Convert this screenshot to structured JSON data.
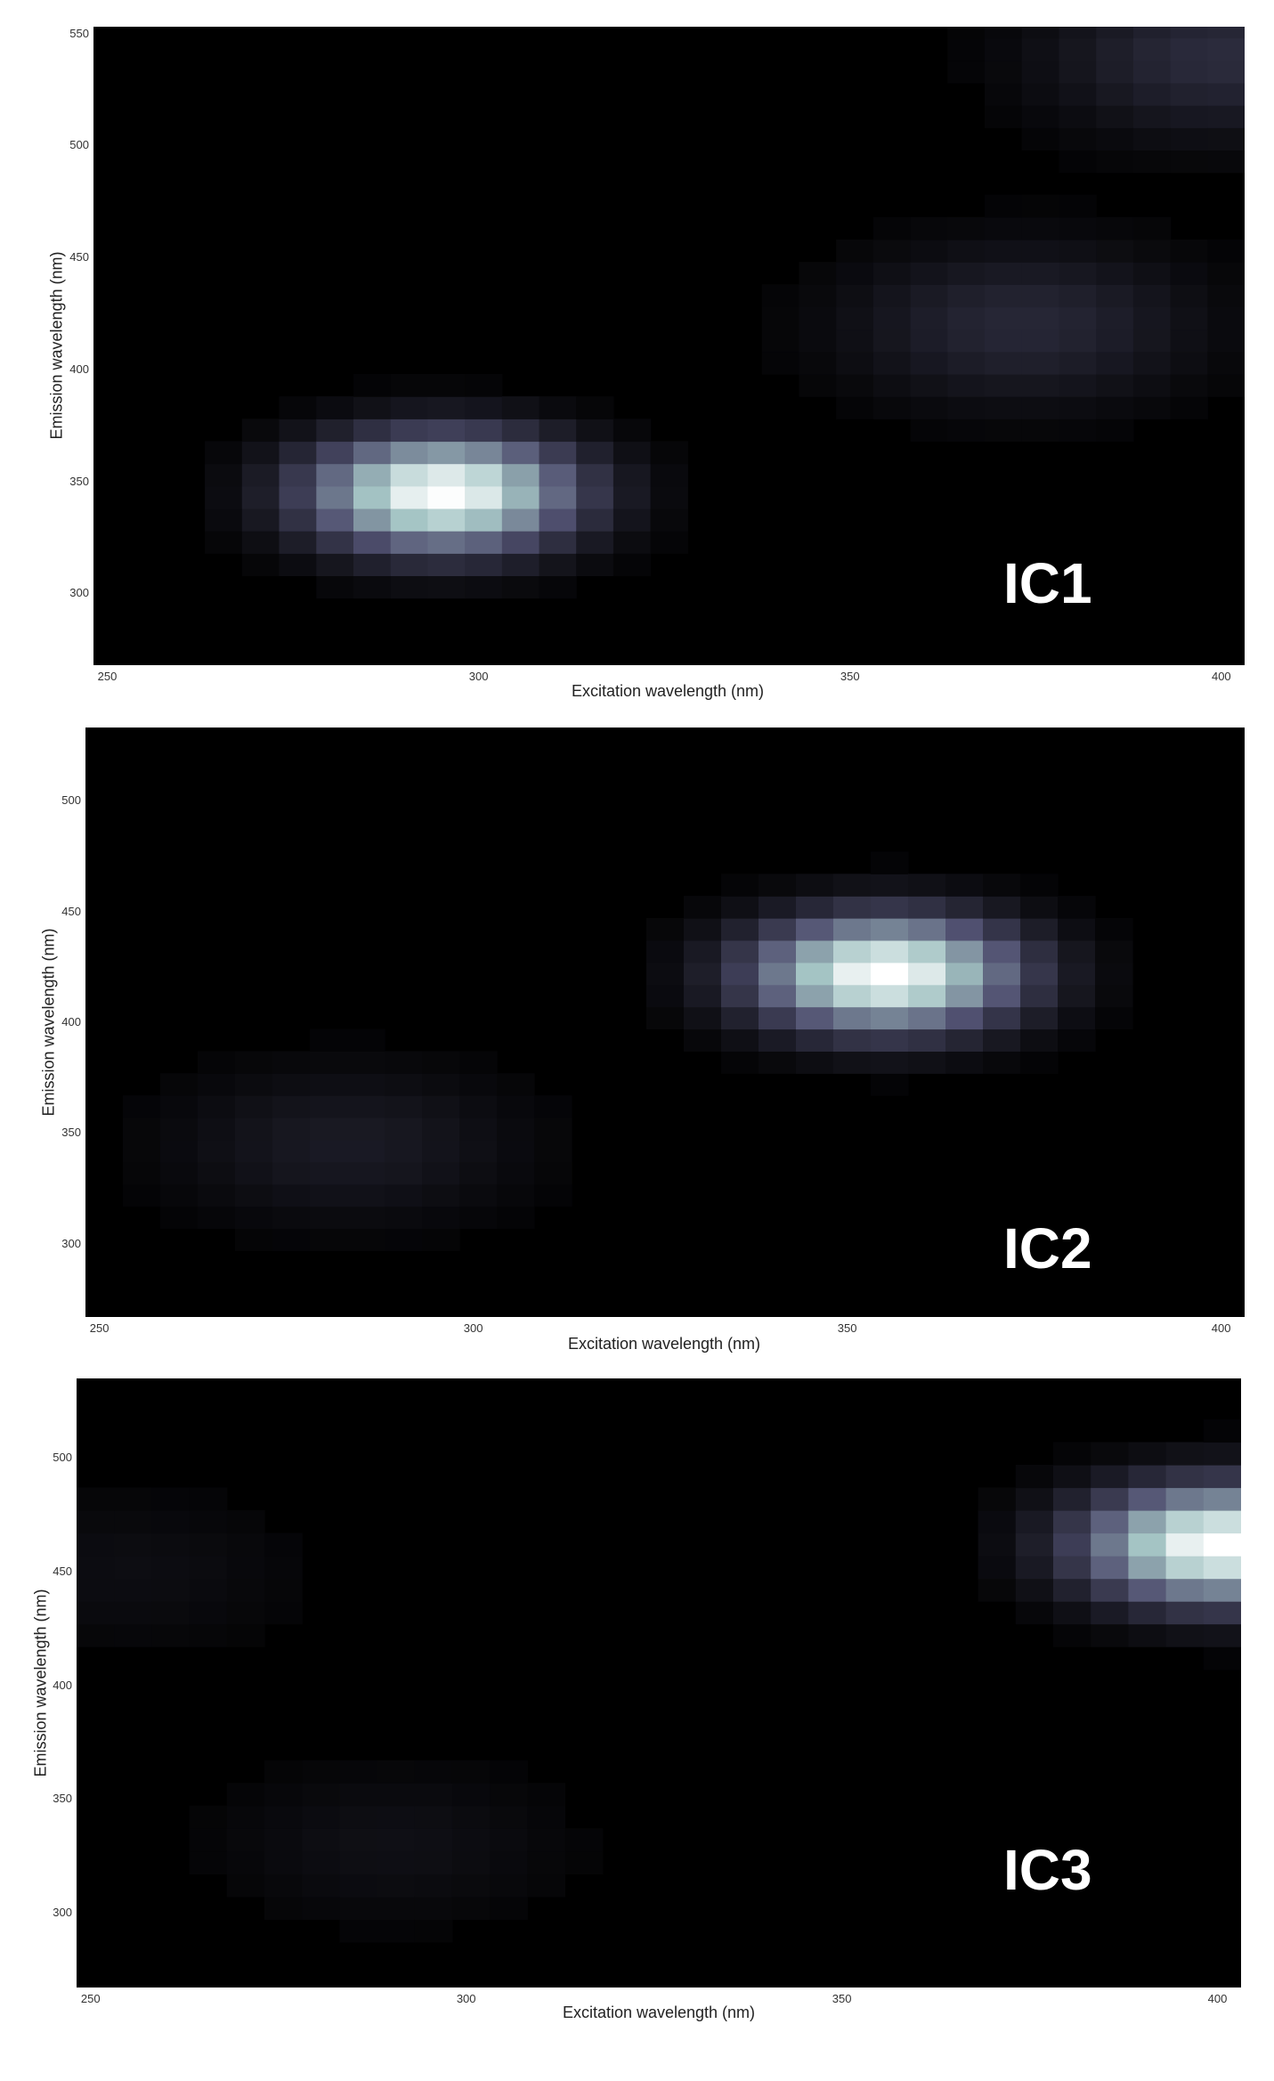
{
  "chart_data": [
    {
      "type": "heatmap",
      "panel_label": "IC1",
      "xlabel": "Excitation wavelength (nm)",
      "ylabel": "Emission wavelength (nm)",
      "xlim": [
        248,
        403
      ],
      "ylim": [
        268,
        553
      ],
      "xticks": [
        250,
        300,
        350,
        400
      ],
      "yticks": [
        300,
        350,
        400,
        450,
        500,
        550
      ],
      "colormap": "bone",
      "peaks": [
        {
          "ex": 295,
          "em": 345,
          "intensity": 1.0
        },
        {
          "ex": 373,
          "em": 420,
          "intensity": 0.18
        },
        {
          "ex": 400,
          "em": 540,
          "intensity": 0.2
        }
      ]
    },
    {
      "type": "heatmap",
      "panel_label": "IC2",
      "xlabel": "Excitation wavelength (nm)",
      "ylabel": "Emission wavelength (nm)",
      "xlim": [
        248,
        403
      ],
      "ylim": [
        267,
        533
      ],
      "xticks": [
        250,
        300,
        350,
        400
      ],
      "yticks": [
        300,
        350,
        400,
        450,
        500
      ],
      "colormap": "bone",
      "peaks": [
        {
          "ex": 355,
          "em": 422,
          "intensity": 1.0
        },
        {
          "ex": 283,
          "em": 345,
          "intensity": 0.12
        }
      ]
    },
    {
      "type": "heatmap",
      "panel_label": "IC3",
      "xlabel": "Excitation wavelength (nm)",
      "ylabel": "Emission wavelength (nm)",
      "xlim": [
        248,
        403
      ],
      "ylim": [
        267,
        535
      ],
      "xticks": [
        250,
        300,
        350,
        400
      ],
      "yticks": [
        300,
        350,
        400,
        450,
        500
      ],
      "colormap": "bone",
      "peaks": [
        {
          "ex": 400,
          "em": 462,
          "intensity": 1.0
        },
        {
          "ex": 290,
          "em": 330,
          "intensity": 0.07
        },
        {
          "ex": 255,
          "em": 450,
          "intensity": 0.06
        }
      ]
    }
  ]
}
